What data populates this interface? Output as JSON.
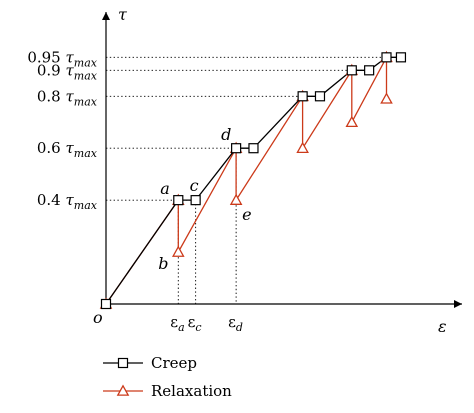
{
  "chart_data": {
    "type": "line",
    "axes": {
      "y_symbol": "τ",
      "x_symbol": "ε",
      "origin": "o"
    },
    "y_ticks": [
      {
        "coef": "0.95",
        "sym": "τ",
        "sub": "max",
        "value": 0.95
      },
      {
        "coef": "0.9",
        "sym": "τ",
        "sub": "max",
        "value": 0.9
      },
      {
        "coef": "0.8",
        "sym": "τ",
        "sub": "max",
        "value": 0.8
      },
      {
        "coef": "0.6",
        "sym": "τ",
        "sub": "max",
        "value": 0.6
      },
      {
        "coef": "0.4",
        "sym": "τ",
        "sub": "max",
        "value": 0.4
      }
    ],
    "x_ticks": [
      {
        "sym": "ε",
        "sub": "a",
        "value": 0.25
      },
      {
        "sym": "ε",
        "sub": "c",
        "value": 0.31
      },
      {
        "sym": "ε",
        "sub": "d",
        "value": 0.45
      }
    ],
    "point_labels": [
      {
        "text": "a",
        "x": 0.25,
        "y": 0.4
      },
      {
        "text": "b",
        "x": 0.25,
        "y": 0.2
      },
      {
        "text": "c",
        "x": 0.31,
        "y": 0.4
      },
      {
        "text": "d",
        "x": 0.45,
        "y": 0.6
      },
      {
        "text": "e",
        "x": 0.45,
        "y": 0.4
      }
    ],
    "series": [
      {
        "name": "Creep",
        "color": "#000000",
        "marker": "square",
        "points": [
          [
            0.0,
            0.0
          ],
          [
            0.25,
            0.4
          ],
          [
            0.31,
            0.4
          ],
          [
            0.45,
            0.6
          ],
          [
            0.51,
            0.6
          ],
          [
            0.68,
            0.8
          ],
          [
            0.74,
            0.8
          ],
          [
            0.85,
            0.9
          ],
          [
            0.91,
            0.9
          ],
          [
            0.97,
            0.95
          ],
          [
            1.02,
            0.95
          ]
        ]
      },
      {
        "name": "Relaxation",
        "color": "#cc3a1a",
        "marker": "triangle",
        "points": [
          [
            0.0,
            0.0
          ],
          [
            0.25,
            0.4
          ],
          [
            0.25,
            0.2
          ],
          [
            0.45,
            0.6
          ],
          [
            0.45,
            0.4
          ],
          [
            0.68,
            0.8
          ],
          [
            0.68,
            0.6
          ],
          [
            0.85,
            0.9
          ],
          [
            0.85,
            0.7
          ],
          [
            0.97,
            0.95
          ],
          [
            0.97,
            0.79
          ]
        ]
      }
    ],
    "xlim": [
      0,
      1.2
    ],
    "ylim": [
      0,
      1.14
    ],
    "grid": false,
    "legend": {
      "position": "bottom-center",
      "entries": [
        "Creep",
        "Relaxation"
      ]
    }
  }
}
